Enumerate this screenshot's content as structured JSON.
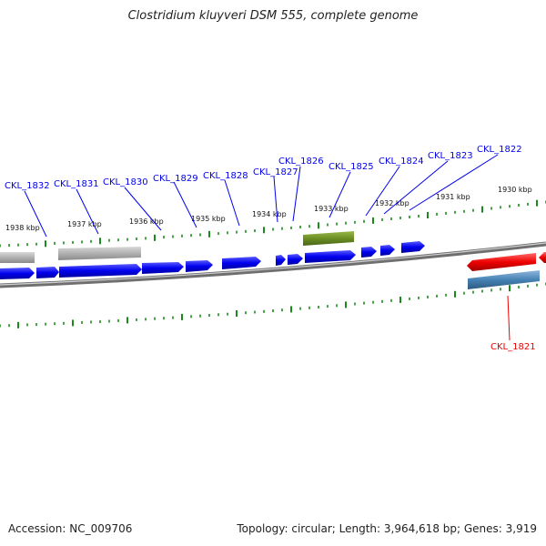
{
  "title": "Clostridium kluyveri DSM 555, complete genome",
  "footer": {
    "accession": "Accession: NC_009706",
    "summary": "Topology: circular; Length: 3,964,618 bp; Genes: 3,919"
  },
  "colors": {
    "forward_gene": "#0000ee",
    "reverse_gene": "#ee0000",
    "pseudo_gene": "#aaaaaa",
    "rna_feature": "#6b8e23",
    "reverse_rna": "#4682b4",
    "tick": "#1a8a1a",
    "backbone": "#777777"
  },
  "scale_ticks_outer": [
    "1938 kbp",
    "1937 kbp",
    "1936 kbp",
    "1935 kbp",
    "1934 kbp",
    "1933 kbp",
    "1932 kbp",
    "1931 kbp",
    "1930 kbp"
  ],
  "gene_labels": [
    "CKL_1832",
    "CKL_1831",
    "CKL_1830",
    "CKL_1829",
    "CKL_1828",
    "CKL_1827",
    "CKL_1826",
    "CKL_1825",
    "CKL_1824",
    "CKL_1823",
    "CKL_1822",
    "CKL_1821"
  ]
}
